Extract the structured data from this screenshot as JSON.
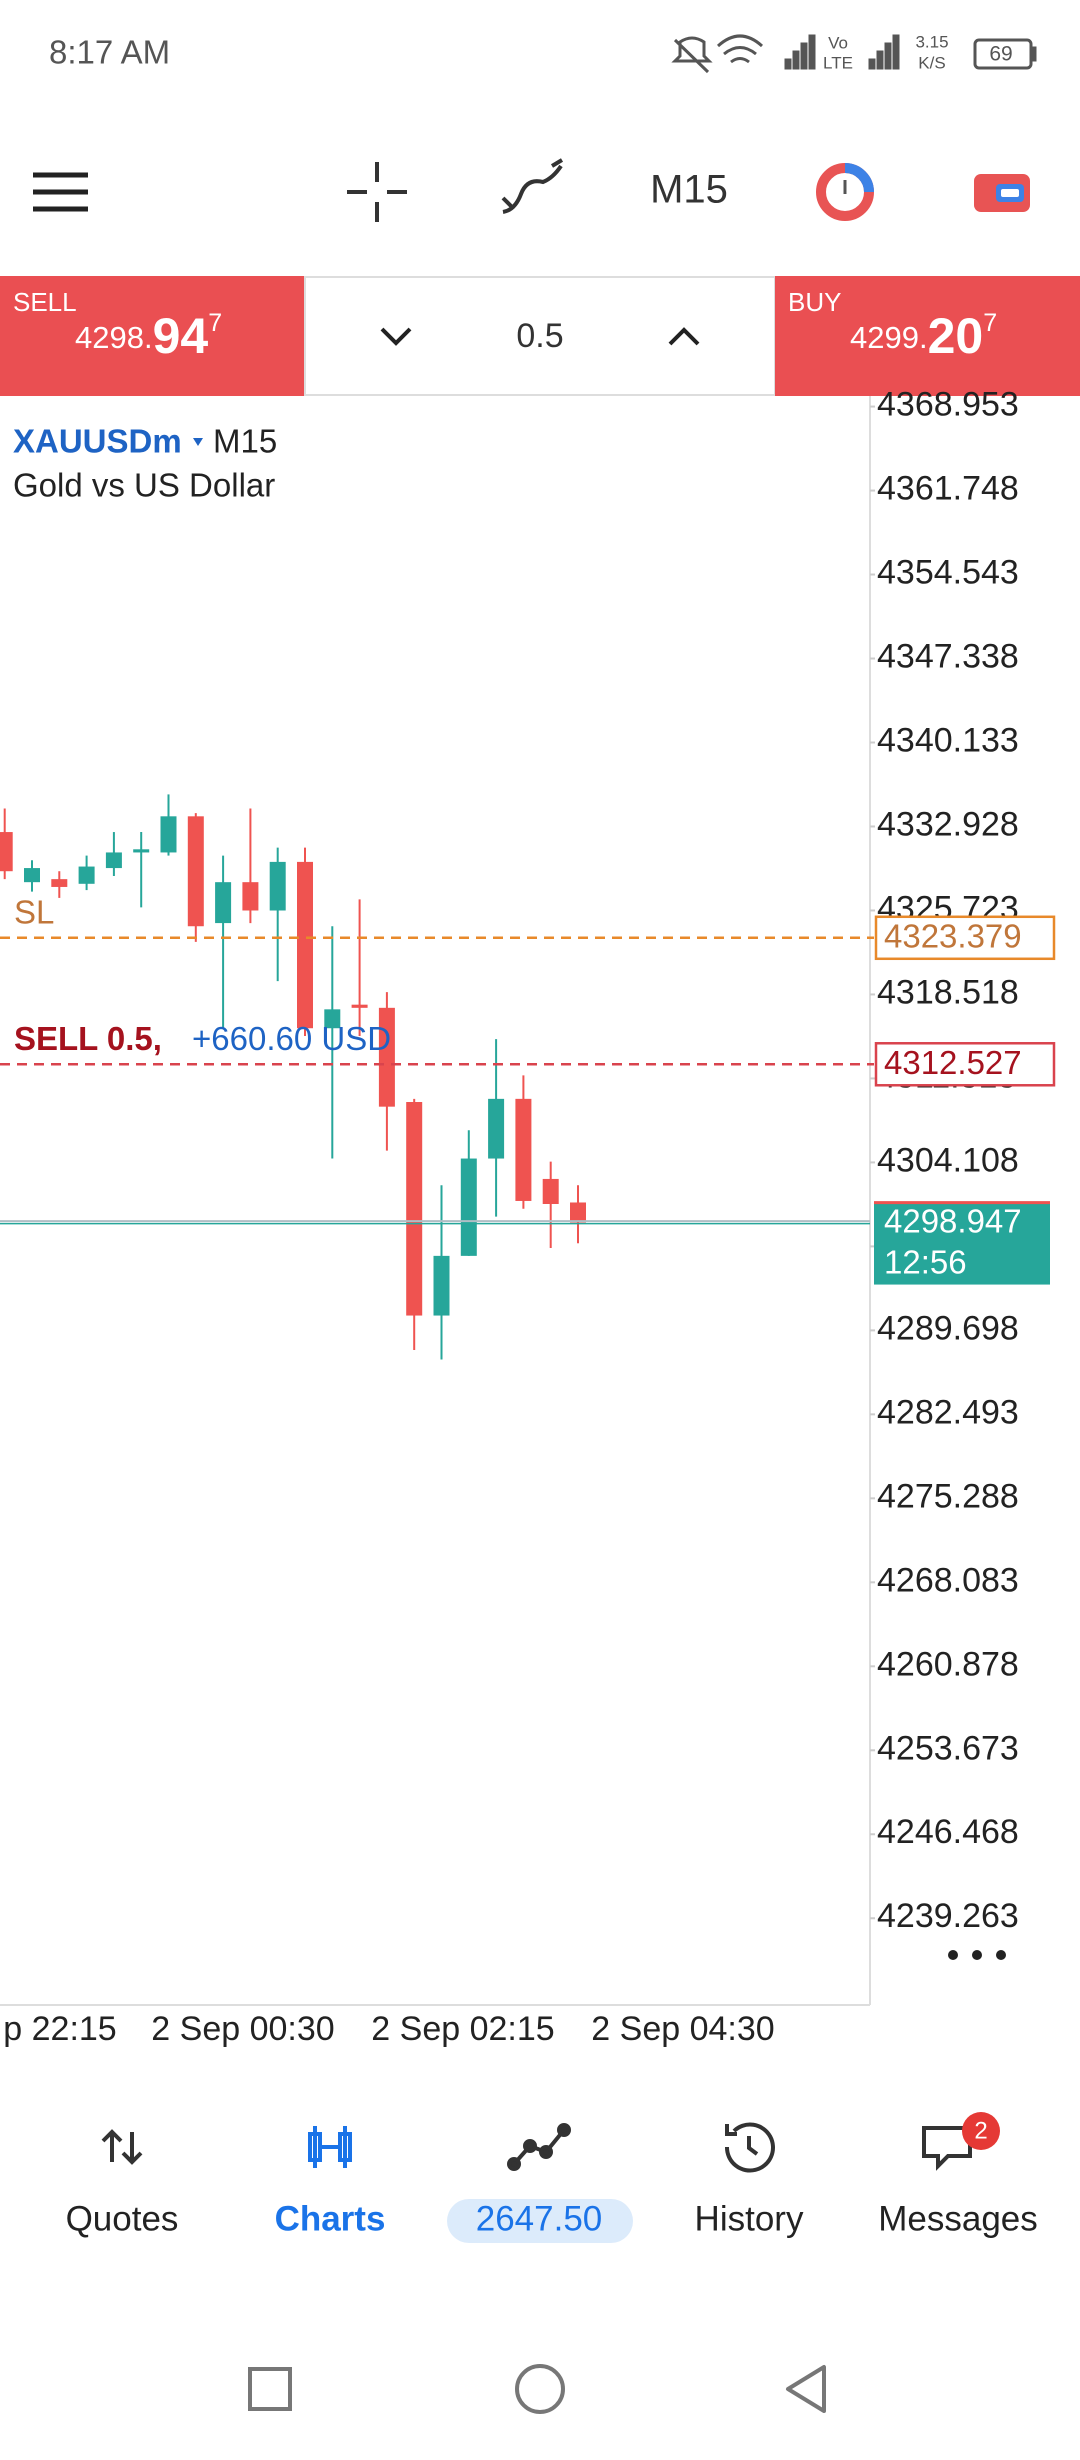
{
  "status_bar": {
    "time": "8:17 AM",
    "volte": "Vo",
    "lte": "LTE",
    "net_speed": "3.15",
    "net_unit": "K/S",
    "battery": "69"
  },
  "toolbar": {
    "timeframe": "M15"
  },
  "trade_panel": {
    "sell": {
      "label": "SELL",
      "price_head": "4298.",
      "price_big": "94",
      "price_sup": "7"
    },
    "volume": "0.5",
    "buy": {
      "label": "BUY",
      "price_head": "4299.",
      "price_big": "20",
      "price_sup": "7"
    }
  },
  "chart_data": {
    "type": "candlestick",
    "symbol": "XAUUSDm",
    "timeframe": "M15",
    "description": "Gold vs US Dollar",
    "up_color": "#26a69a",
    "down_color": "#ef5350",
    "candles": [
      {
        "open": 4332.45,
        "high": 4334.47,
        "low": 4328.41,
        "close": 4329.09
      },
      {
        "open": 4328.15,
        "high": 4330.03,
        "low": 4327.34,
        "close": 4329.36
      },
      {
        "open": 4328.41,
        "high": 4329.09,
        "low": 4326.8,
        "close": 4327.74
      },
      {
        "open": 4328.01,
        "high": 4330.43,
        "low": 4327.47,
        "close": 4329.49
      },
      {
        "open": 4329.36,
        "high": 4332.45,
        "low": 4328.68,
        "close": 4330.7
      },
      {
        "open": 4330.7,
        "high": 4332.45,
        "low": 4325.99,
        "close": 4330.97
      },
      {
        "open": 4330.7,
        "high": 4335.68,
        "low": 4330.43,
        "close": 4333.8
      },
      {
        "open": 4333.8,
        "high": 4334.07,
        "low": 4323.03,
        "close": 4324.37
      },
      {
        "open": 4324.64,
        "high": 4330.43,
        "low": 4315.62,
        "close": 4328.15
      },
      {
        "open": 4328.15,
        "high": 4334.47,
        "low": 4324.64,
        "close": 4325.72
      },
      {
        "open": 4325.72,
        "high": 4331.11,
        "low": 4319.66,
        "close": 4329.89
      },
      {
        "open": 4329.89,
        "high": 4331.11,
        "low": 4314.95,
        "close": 4315.62
      },
      {
        "open": 4315.62,
        "high": 4324.37,
        "low": 4304.44,
        "close": 4317.24
      },
      {
        "open": 4317.64,
        "high": 4326.67,
        "low": 4314.95,
        "close": 4317.37
      },
      {
        "open": 4317.37,
        "high": 4318.72,
        "low": 4305.12,
        "close": 4308.89
      },
      {
        "open": 4309.29,
        "high": 4309.56,
        "low": 4288.01,
        "close": 4290.97
      },
      {
        "open": 4290.97,
        "high": 4302.15,
        "low": 4287.2,
        "close": 4296.09
      },
      {
        "open": 4296.09,
        "high": 4306.87,
        "low": 4296.09,
        "close": 4304.44
      },
      {
        "open": 4304.44,
        "high": 4314.68,
        "low": 4299.46,
        "close": 4309.56
      },
      {
        "open": 4309.56,
        "high": 4311.58,
        "low": 4300.13,
        "close": 4300.8
      },
      {
        "open": 4302.69,
        "high": 4304.17,
        "low": 4296.77,
        "close": 4300.54
      },
      {
        "open": 4300.67,
        "high": 4302.15,
        "low": 4297.17,
        "close": 4298.947
      }
    ],
    "ylim": [
      4231.82,
      4369.86
    ],
    "yticks": [
      4368.953,
      4361.748,
      4354.543,
      4347.338,
      4340.133,
      4332.928,
      4325.723,
      4318.518,
      4311.313,
      4304.108,
      4296.903,
      4289.698,
      4282.493,
      4275.288,
      4268.083,
      4260.878,
      4253.673,
      4246.468,
      4239.263
    ],
    "xtick_labels": [
      "p 22:15",
      "2 Sep 00:30",
      "2 Sep 02:15",
      "2 Sep 04:30"
    ],
    "levels": [
      {
        "label": "SL",
        "value": 4323.379,
        "color": "#e8892a",
        "text_color": "#c0763a"
      },
      {
        "label": "SELL 0.5,",
        "profit": "+660.60 USD",
        "value": 4312.527,
        "color": "#d9434d",
        "text_color": "#a5121e",
        "profit_color": "#1e63c4"
      }
    ],
    "current_price": {
      "value": 4298.947,
      "timer": "12:56",
      "color": "#26a69a"
    }
  },
  "nav": [
    {
      "label": "Quotes"
    },
    {
      "label": "Charts"
    },
    {
      "label": "2647.50"
    },
    {
      "label": "History"
    },
    {
      "label": "Messages",
      "badge": "2"
    }
  ]
}
